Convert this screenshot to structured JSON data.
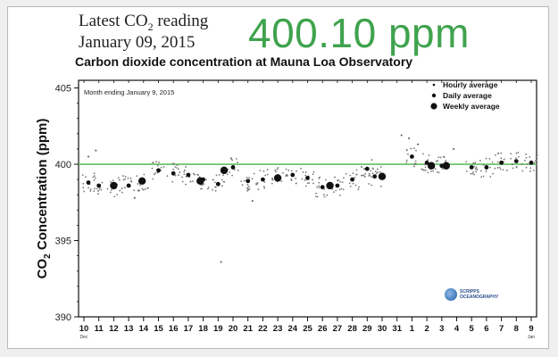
{
  "header": {
    "latest_prefix": "Latest CO",
    "latest_sub": "2",
    "latest_suffix": " reading",
    "date": "January 09, 2015",
    "reading": "400.10 ppm"
  },
  "colors": {
    "reading": "#3fa34d",
    "threshold": "#5fbf5f",
    "points": "#111111"
  },
  "logo": {
    "mark": "globe-icon",
    "line1": "SCRIPPS",
    "line2": "OCEANOGRAPHY"
  },
  "chart_data": {
    "type": "scatter",
    "title": "Carbon dioxide concentration at Mauna Loa Observatory",
    "annotation": "Month ending January 9, 2015",
    "ylabel_main": "CO",
    "ylabel_sub": "2",
    "ylabel_rest": " Concentration (ppm)",
    "ylim": [
      390,
      405.5
    ],
    "yticks": [
      390,
      395,
      400,
      405
    ],
    "threshold": 400,
    "grid": false,
    "legend_position": "top-right",
    "legend": [
      "Hourly average",
      "Daily average",
      "Weekly average"
    ],
    "xtick_labels": [
      "10",
      "11",
      "12",
      "13",
      "14",
      "15",
      "16",
      "17",
      "18",
      "19",
      "20",
      "21",
      "22",
      "23",
      "24",
      "25",
      "26",
      "27",
      "28",
      "29",
      "30",
      "31",
      "1",
      "2",
      "3",
      "4",
      "5",
      "6",
      "7",
      "8",
      "9"
    ],
    "month_labels": [
      {
        "label": "Dec",
        "index": 0
      },
      {
        "label": "Jan",
        "index": 30
      }
    ],
    "daily": [
      {
        "x": 0.3,
        "y": 398.8
      },
      {
        "x": 1.0,
        "y": 398.6
      },
      {
        "x": 2.0,
        "y": 398.5
      },
      {
        "x": 3.0,
        "y": 398.6
      },
      {
        "x": 4.0,
        "y": 398.9
      },
      {
        "x": 5.0,
        "y": 399.6
      },
      {
        "x": 6.0,
        "y": 399.4
      },
      {
        "x": 7.0,
        "y": 399.3
      },
      {
        "x": 8.0,
        "y": 399.0
      },
      {
        "x": 9.0,
        "y": 398.7
      },
      {
        "x": 10.0,
        "y": 399.8
      },
      {
        "x": 11.0,
        "y": 398.9
      },
      {
        "x": 12.0,
        "y": 399.0
      },
      {
        "x": 13.0,
        "y": 399.2
      },
      {
        "x": 14.0,
        "y": 399.3
      },
      {
        "x": 15.0,
        "y": 399.1
      },
      {
        "x": 16.0,
        "y": 398.5
      },
      {
        "x": 17.0,
        "y": 398.6
      },
      {
        "x": 18.0,
        "y": 399.0
      },
      {
        "x": 19.0,
        "y": 399.7
      },
      {
        "x": 19.5,
        "y": 399.2
      },
      {
        "x": 22.0,
        "y": 400.5
      },
      {
        "x": 23.0,
        "y": 400.1
      },
      {
        "x": 24.0,
        "y": 399.9
      },
      {
        "x": 26.0,
        "y": 399.8
      },
      {
        "x": 27.0,
        "y": 399.8
      },
      {
        "x": 28.0,
        "y": 400.1
      },
      {
        "x": 29.0,
        "y": 400.2
      },
      {
        "x": 30.0,
        "y": 400.1
      }
    ],
    "weekly": [
      {
        "x": 2.0,
        "y": 398.6
      },
      {
        "x": 3.9,
        "y": 398.9
      },
      {
        "x": 7.8,
        "y": 398.9
      },
      {
        "x": 9.4,
        "y": 399.6
      },
      {
        "x": 13.0,
        "y": 399.1
      },
      {
        "x": 16.5,
        "y": 398.6
      },
      {
        "x": 20.0,
        "y": 399.2
      },
      {
        "x": 23.3,
        "y": 399.9
      },
      {
        "x": 24.3,
        "y": 399.9
      }
    ],
    "hourly_outliers": [
      {
        "x": 9.2,
        "y": 393.6
      },
      {
        "x": 0.3,
        "y": 400.5
      },
      {
        "x": 0.8,
        "y": 400.9
      },
      {
        "x": 21.3,
        "y": 401.9
      },
      {
        "x": 21.8,
        "y": 401.7
      },
      {
        "x": 22.4,
        "y": 401.3
      },
      {
        "x": 24.8,
        "y": 401.0
      },
      {
        "x": 11.3,
        "y": 397.6
      },
      {
        "x": 3.4,
        "y": 397.8
      }
    ]
  }
}
